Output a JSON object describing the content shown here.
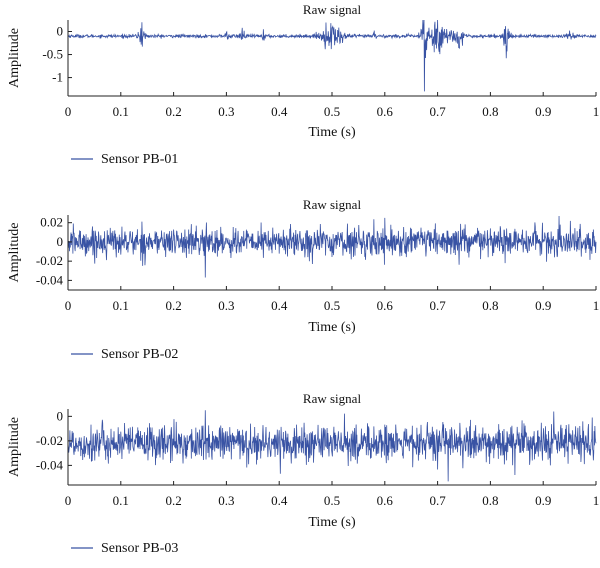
{
  "chart_data": [
    {
      "type": "line",
      "title": "Raw signal",
      "xlabel": "Time (s)",
      "ylabel": "Amplitude",
      "xlim": [
        0,
        1
      ],
      "ylim": [
        -1.4,
        0.25
      ],
      "xticks": [
        "0",
        "0.1",
        "0.2",
        "0.3",
        "0.4",
        "0.5",
        "0.6",
        "0.7",
        "0.8",
        "0.9",
        "1"
      ],
      "yticks": [
        {
          "v": 0,
          "label": "0"
        },
        {
          "v": -0.5,
          "label": "-0.5"
        },
        {
          "v": -1,
          "label": "-1"
        }
      ],
      "series": [
        {
          "name": "Sensor PB-01",
          "color": "#3953a4",
          "baseline": -0.1,
          "noise": 0.018,
          "events": [
            {
              "t": 0.14,
              "w": 0.006,
              "a": 0.3
            },
            {
              "t": 0.3,
              "w": 0.004,
              "a": 0.12
            },
            {
              "t": 0.33,
              "w": 0.005,
              "a": 0.18
            },
            {
              "t": 0.37,
              "w": 0.003,
              "a": 0.15
            },
            {
              "t": 0.5,
              "w": 0.02,
              "a": 0.35
            },
            {
              "t": 0.58,
              "w": 0.003,
              "a": 0.12
            },
            {
              "t": 0.675,
              "w": 0.004,
              "a": 1.3
            },
            {
              "t": 0.7,
              "w": 0.022,
              "a": 0.5
            },
            {
              "t": 0.74,
              "w": 0.01,
              "a": 0.25
            },
            {
              "t": 0.83,
              "w": 0.006,
              "a": 0.5
            },
            {
              "t": 0.95,
              "w": 0.01,
              "a": 0.12
            }
          ],
          "points": [
            [
              0.0,
              -0.1
            ],
            [
              0.14,
              0.2
            ],
            [
              0.3,
              -0.02
            ],
            [
              0.33,
              0.08
            ],
            [
              0.37,
              0.05
            ],
            [
              0.5,
              0.08
            ],
            [
              0.52,
              -0.25
            ],
            [
              0.58,
              0.02
            ],
            [
              0.675,
              -1.3
            ],
            [
              0.7,
              0.25
            ],
            [
              0.74,
              -0.35
            ],
            [
              0.83,
              -0.58
            ],
            [
              0.95,
              0.02
            ],
            [
              1.0,
              -0.1
            ]
          ]
        }
      ]
    },
    {
      "type": "line",
      "title": "Raw signal",
      "xlabel": "Time (s)",
      "ylabel": "Amplitude",
      "xlim": [
        0,
        1
      ],
      "ylim": [
        -0.05,
        0.028
      ],
      "xticks": [
        "0",
        "0.1",
        "0.2",
        "0.3",
        "0.4",
        "0.5",
        "0.6",
        "0.7",
        "0.8",
        "0.9",
        "1"
      ],
      "yticks": [
        {
          "v": 0.02,
          "label": "0.02"
        },
        {
          "v": 0,
          "label": "0"
        },
        {
          "v": -0.02,
          "label": "-0.02"
        },
        {
          "v": -0.04,
          "label": "-0.04"
        }
      ],
      "series": [
        {
          "name": "Sensor PB-02",
          "color": "#3953a4",
          "baseline": 0.0,
          "noise": 0.0075,
          "points": [
            [
              0.0,
              0.0
            ],
            [
              0.26,
              -0.037
            ],
            [
              0.6,
              0.025
            ],
            [
              0.93,
              0.027
            ],
            [
              1.0,
              0.0
            ]
          ]
        }
      ]
    },
    {
      "type": "line",
      "title": "Raw signal",
      "xlabel": "Time (s)",
      "ylabel": "Amplitude",
      "xlim": [
        0,
        1
      ],
      "ylim": [
        -0.056,
        0.006
      ],
      "xticks": [
        "0",
        "0.1",
        "0.2",
        "0.3",
        "0.4",
        "0.5",
        "0.6",
        "0.7",
        "0.8",
        "0.9",
        "1"
      ],
      "yticks": [
        {
          "v": 0,
          "label": "0"
        },
        {
          "v": -0.02,
          "label": "-0.02"
        },
        {
          "v": -0.04,
          "label": "-0.04"
        }
      ],
      "series": [
        {
          "name": "Sensor PB-03",
          "color": "#3953a4",
          "baseline": -0.022,
          "noise": 0.0075,
          "points": [
            [
              0.0,
              -0.022
            ],
            [
              0.26,
              0.005
            ],
            [
              0.72,
              -0.053
            ],
            [
              0.92,
              0.004
            ],
            [
              1.0,
              -0.022
            ]
          ]
        }
      ]
    }
  ]
}
